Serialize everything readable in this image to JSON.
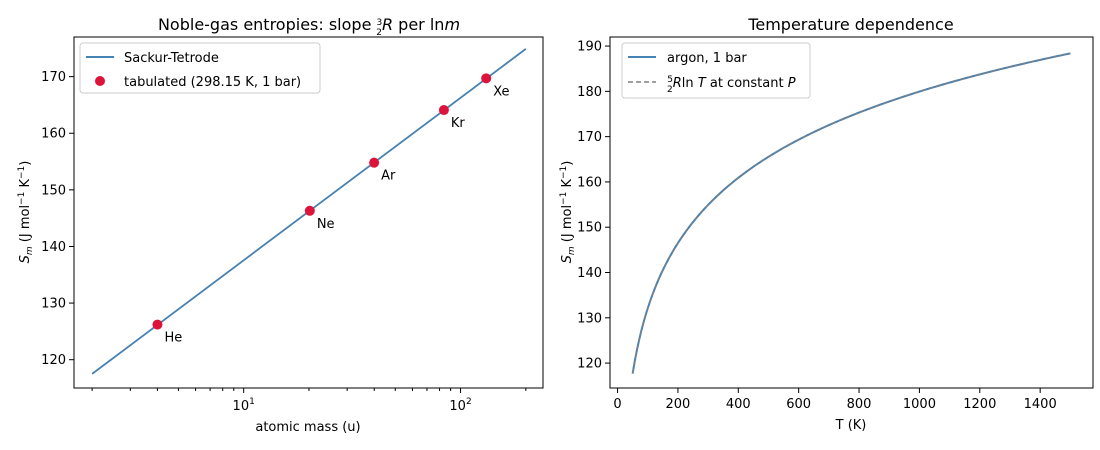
{
  "chart_data": [
    {
      "type": "line",
      "title_prefix": "Noble-gas entropies: slope ",
      "title_math": "3/2 R per ln m",
      "xlabel": "atomic mass (u)",
      "ylabel": "S_m (J mol⁻¹ K⁻¹)",
      "xscale": "log",
      "xlim": [
        1.65,
        240
      ],
      "ylim": [
        115,
        177
      ],
      "xticks": [
        10,
        100
      ],
      "xtick_labels": [
        "10¹",
        "10²"
      ],
      "yticks": [
        120,
        130,
        140,
        150,
        160,
        170
      ],
      "legend_position": "upper-left",
      "grid": false,
      "series": [
        {
          "name": "Sackur-Tetrode",
          "kind": "line",
          "color": "#4682b4",
          "x": [
            2,
            200
          ],
          "y": [
            117.5,
            174.9
          ]
        },
        {
          "name": "tabulated (298.15 K, 1 bar)",
          "kind": "scatter",
          "color": "#dc143c",
          "x": [
            4.0026,
            20.18,
            39.948,
            83.798,
            131.29
          ],
          "y": [
            126.2,
            146.3,
            154.8,
            164.1,
            169.7
          ],
          "labels": [
            "He",
            "Ne",
            "Ar",
            "Kr",
            "Xe"
          ]
        }
      ]
    },
    {
      "type": "line",
      "title": "Temperature dependence",
      "xlabel": "T (K)",
      "ylabel": "S_m (J mol⁻¹ K⁻¹)",
      "xlim": [
        -25,
        1575
      ],
      "ylim": [
        114.5,
        192
      ],
      "xticks": [
        0,
        200,
        400,
        600,
        800,
        1000,
        1200,
        1400
      ],
      "yticks": [
        120,
        130,
        140,
        150,
        160,
        170,
        180,
        190
      ],
      "legend_position": "upper-left",
      "grid": false,
      "series": [
        {
          "name": "argon, 1 bar",
          "kind": "line",
          "color": "#4682b4",
          "T_range": [
            50,
            1500
          ],
          "S_ref": 154.8,
          "T_ref": 298.15
        },
        {
          "name": "5/2 R ln T at constant P",
          "kind": "dashed",
          "color": "#808080",
          "T_range": [
            50,
            1500
          ],
          "S_ref": 154.8,
          "T_ref": 298.15
        }
      ]
    }
  ]
}
